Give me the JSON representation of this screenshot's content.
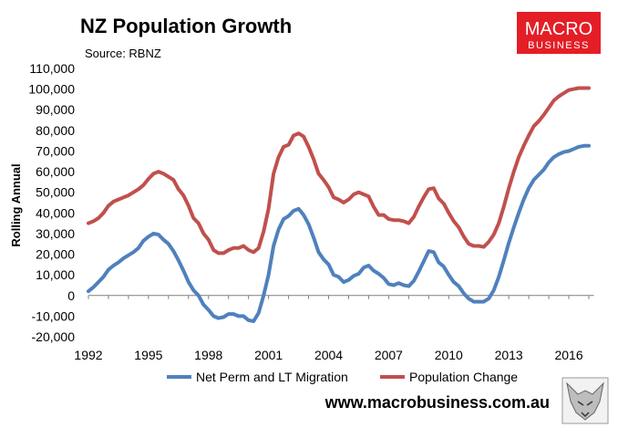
{
  "brand": {
    "logo_line1": "MACRO",
    "logo_line2": "BUSINESS",
    "logo_color": "#e41e26",
    "website": "www.macrobusiness.com.au"
  },
  "chart_data": {
    "type": "line",
    "title": "NZ Population Growth",
    "subtitle": "Source: RBNZ",
    "ylabel": "Rolling Annual",
    "xlabel": "",
    "ylim": [
      -20000,
      110000
    ],
    "yticks": [
      -20000,
      -10000,
      0,
      10000,
      20000,
      30000,
      40000,
      50000,
      60000,
      70000,
      80000,
      90000,
      100000,
      110000
    ],
    "ytick_labels": [
      "-20,000",
      "-10,000",
      "0",
      "10,000",
      "20,000",
      "30,000",
      "40,000",
      "50,000",
      "60,000",
      "70,000",
      "80,000",
      "90,000",
      "100,000",
      "110,000"
    ],
    "xlim": [
      1992,
      2017.25
    ],
    "xticks": [
      1992,
      1995,
      1998,
      2001,
      2004,
      2007,
      2010,
      2013,
      2016
    ],
    "xtick_labels": [
      "1992",
      "1995",
      "1998",
      "2001",
      "2004",
      "2007",
      "2010",
      "2013",
      "2016"
    ],
    "legend_position": "bottom",
    "x": [
      1992.0,
      1992.25,
      1992.5,
      1992.75,
      1993.0,
      1993.25,
      1993.5,
      1993.75,
      1994.0,
      1994.25,
      1994.5,
      1994.75,
      1995.0,
      1995.25,
      1995.5,
      1995.75,
      1996.0,
      1996.25,
      1996.5,
      1996.75,
      1997.0,
      1997.25,
      1997.5,
      1997.75,
      1998.0,
      1998.25,
      1998.5,
      1998.75,
      1999.0,
      1999.25,
      1999.5,
      1999.75,
      2000.0,
      2000.25,
      2000.5,
      2000.75,
      2001.0,
      2001.25,
      2001.5,
      2001.75,
      2002.0,
      2002.25,
      2002.5,
      2002.75,
      2003.0,
      2003.25,
      2003.5,
      2003.75,
      2004.0,
      2004.25,
      2004.5,
      2004.75,
      2005.0,
      2005.25,
      2005.5,
      2005.75,
      2006.0,
      2006.25,
      2006.5,
      2006.75,
      2007.0,
      2007.25,
      2007.5,
      2007.75,
      2008.0,
      2008.25,
      2008.5,
      2008.75,
      2009.0,
      2009.25,
      2009.5,
      2009.75,
      2010.0,
      2010.25,
      2010.5,
      2010.75,
      2011.0,
      2011.25,
      2011.5,
      2011.75,
      2012.0,
      2012.25,
      2012.5,
      2012.75,
      2013.0,
      2013.25,
      2013.5,
      2013.75,
      2014.0,
      2014.25,
      2014.5,
      2014.75,
      2015.0,
      2015.25,
      2015.5,
      2015.75,
      2016.0,
      2016.25,
      2016.5,
      2016.75,
      2017.0
    ],
    "series": [
      {
        "name": "Net Perm and LT Migration",
        "color": "#4f81bd",
        "values": [
          2000,
          4000,
          6500,
          9000,
          12500,
          14500,
          16000,
          18000,
          19500,
          21000,
          23000,
          26500,
          28500,
          30000,
          29500,
          27000,
          25000,
          21500,
          17000,
          12000,
          6500,
          2500,
          0,
          -4500,
          -7000,
          -10000,
          -11000,
          -10500,
          -9000,
          -9000,
          -10000,
          -10000,
          -12000,
          -12500,
          -8500,
          0,
          10000,
          24000,
          32000,
          37000,
          38500,
          41000,
          42000,
          39000,
          34500,
          28000,
          21000,
          17500,
          15000,
          10000,
          9000,
          6500,
          7500,
          9500,
          10500,
          13500,
          14500,
          12000,
          10500,
          8500,
          5500,
          5000,
          6000,
          5000,
          4500,
          7000,
          11500,
          16500,
          21500,
          21000,
          16000,
          14000,
          10000,
          6500,
          4500,
          1000,
          -1500,
          -3000,
          -3000,
          -3000,
          -1500,
          2500,
          9000,
          17000,
          25500,
          33000,
          40000,
          46500,
          52000,
          56000,
          58500,
          61000,
          64500,
          67000,
          68500,
          69500,
          70000,
          71000,
          72000,
          72500,
          72500
        ]
      },
      {
        "name": "Population Change",
        "color": "#c0504d",
        "values": [
          35000,
          36000,
          37500,
          40000,
          43500,
          45500,
          46500,
          47500,
          48500,
          50000,
          51500,
          53500,
          56500,
          59000,
          60000,
          59000,
          57500,
          56000,
          51500,
          48500,
          43500,
          37500,
          35000,
          30000,
          27000,
          22000,
          20500,
          20500,
          22000,
          23000,
          23000,
          24000,
          22000,
          21000,
          23000,
          31000,
          42000,
          59000,
          67000,
          72000,
          73000,
          77500,
          78500,
          77000,
          72000,
          66000,
          59000,
          56000,
          52500,
          47500,
          46500,
          45000,
          46500,
          49000,
          50000,
          49000,
          48000,
          43000,
          39000,
          39000,
          37000,
          36500,
          36500,
          36000,
          35000,
          38000,
          43000,
          47500,
          51500,
          52000,
          47000,
          44500,
          40000,
          36000,
          33000,
          28500,
          25000,
          24000,
          24000,
          23500,
          26000,
          29500,
          35000,
          43000,
          52000,
          60000,
          67000,
          72500,
          77500,
          82000,
          84500,
          87500,
          91000,
          94500,
          96500,
          98000,
          99500,
          100000,
          100500,
          100500,
          100500
        ]
      }
    ]
  }
}
